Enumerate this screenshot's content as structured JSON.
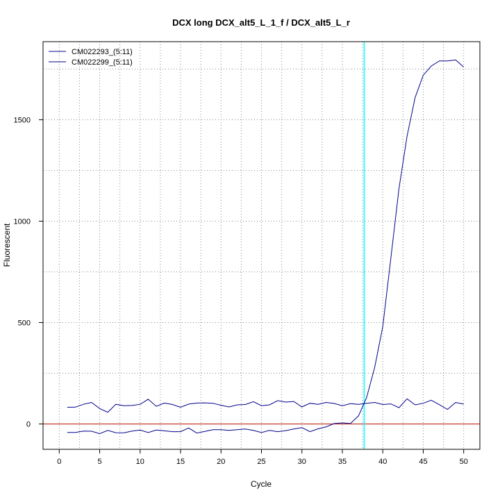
{
  "chart_data": {
    "type": "line",
    "title": "DCX long DCX_alt5_L_1_f / DCX_alt5_L_r",
    "xlabel": "Cycle",
    "ylabel": "Fluorescent",
    "xlim": [
      -2,
      52
    ],
    "ylim": [
      -125,
      1885
    ],
    "x_ticks": [
      0,
      5,
      10,
      15,
      20,
      25,
      30,
      35,
      40,
      45,
      50
    ],
    "y_ticks": [
      0,
      500,
      1000,
      1500
    ],
    "grid": true,
    "legend_position": "top-left",
    "threshold_x": 37.7,
    "baseline_y": 0,
    "colors": {
      "series": "#00008b",
      "threshold": "#00ffff",
      "baseline": "#c0392b",
      "grid": "#888888"
    },
    "x": [
      1,
      2,
      3,
      4,
      5,
      6,
      7,
      8,
      9,
      10,
      11,
      12,
      13,
      14,
      15,
      16,
      17,
      18,
      19,
      20,
      21,
      22,
      23,
      24,
      25,
      26,
      27,
      28,
      29,
      30,
      31,
      32,
      33,
      34,
      35,
      36,
      37,
      38,
      39,
      40,
      41,
      42,
      43,
      44,
      45,
      46,
      47,
      48,
      49,
      50
    ],
    "series": [
      {
        "name": "CM022293_(5:11)",
        "values": [
          -42,
          -42,
          -35,
          -36,
          -48,
          -32,
          -43,
          -44,
          -35,
          -30,
          -42,
          -30,
          -34,
          -38,
          -38,
          -20,
          -45,
          -37,
          -28,
          -28,
          -32,
          -28,
          -25,
          -32,
          -42,
          -32,
          -38,
          -33,
          -25,
          -18,
          -38,
          -24,
          -14,
          2,
          5,
          2,
          40,
          130,
          280,
          480,
          820,
          1160,
          1420,
          1610,
          1720,
          1765,
          1790,
          1790,
          1795,
          1760
        ]
      },
      {
        "name": "CM022299_(5:11)",
        "values": [
          82,
          83,
          97,
          106,
          76,
          58,
          97,
          90,
          91,
          97,
          122,
          87,
          103,
          96,
          82,
          98,
          103,
          104,
          102,
          92,
          84,
          94,
          96,
          110,
          90,
          94,
          115,
          108,
          111,
          84,
          102,
          97,
          106,
          101,
          90,
          100,
          97,
          102,
          106,
          96,
          99,
          80,
          124,
          94,
          102,
          117,
          95,
          72,
          106,
          98
        ]
      }
    ]
  }
}
